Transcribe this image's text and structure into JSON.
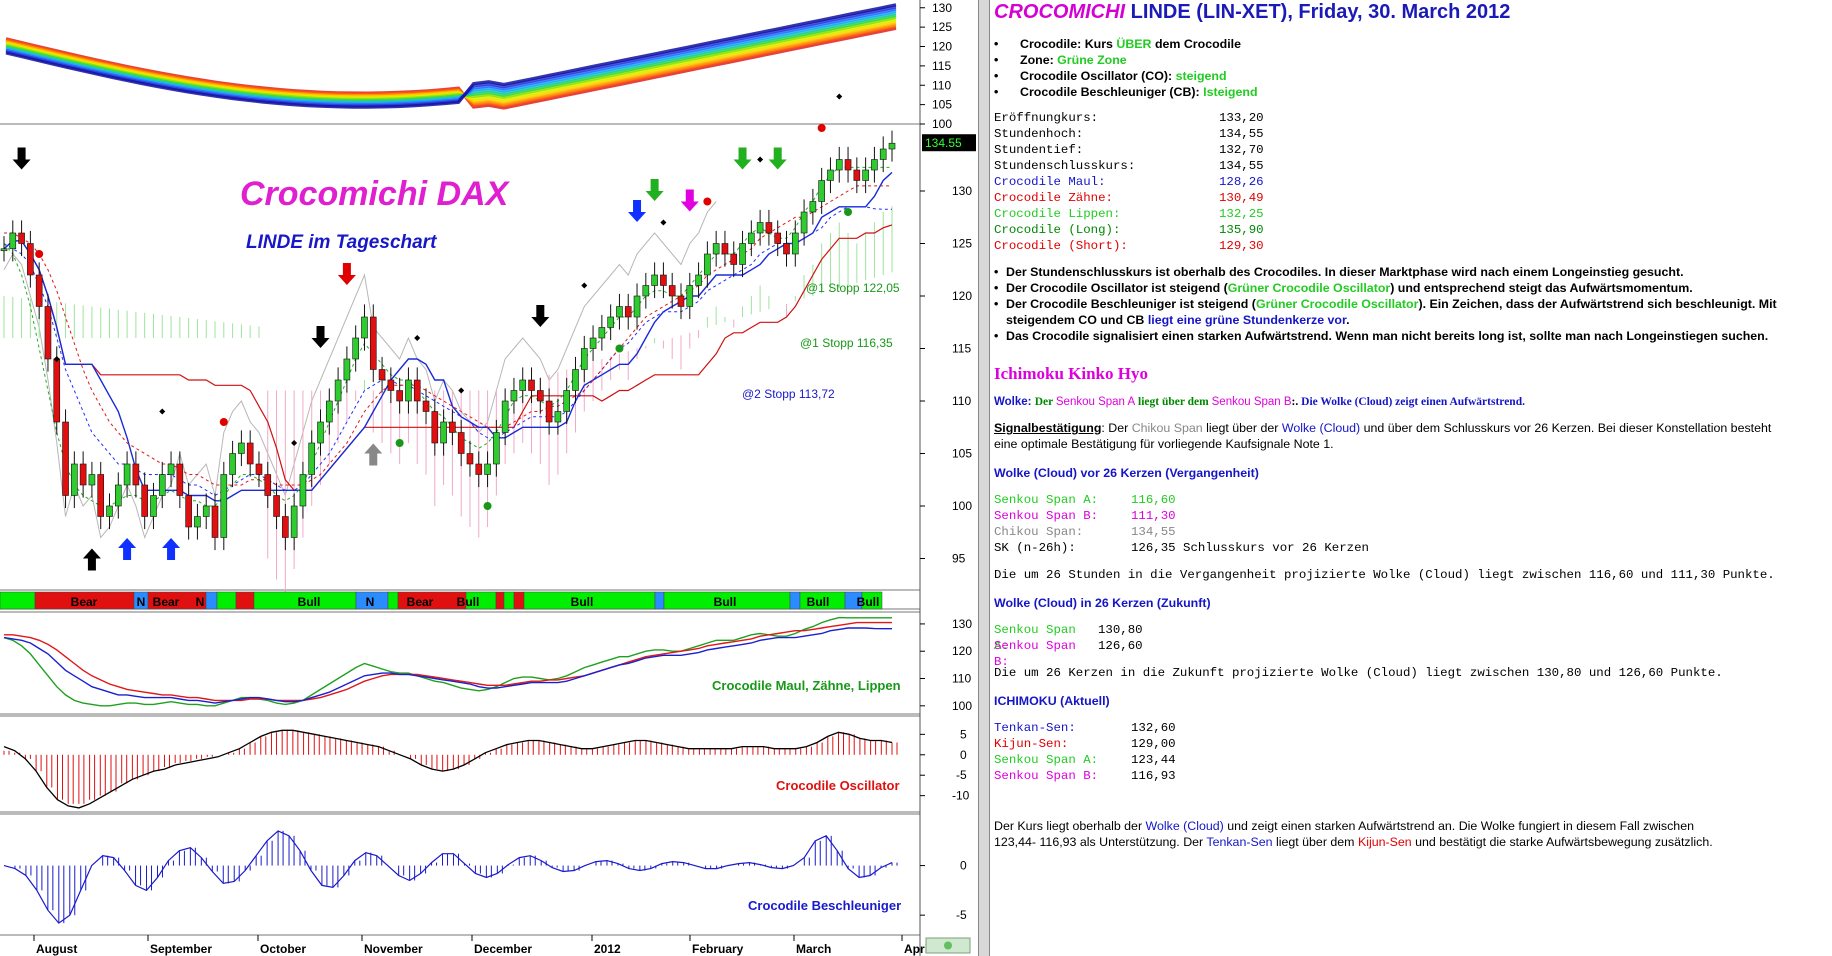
{
  "chart_data": [
    {
      "type": "area",
      "name": "ribbon",
      "ylim": [
        100,
        132
      ],
      "y_ticks": [
        "130",
        "125",
        "120",
        "115",
        "110",
        "105",
        "100"
      ]
    },
    {
      "type": "candlestick",
      "title": "Crocomichi DAX",
      "subtitle": "LINDE im Tageschart",
      "ylim": [
        92,
        136
      ],
      "y_ticks": [
        "130",
        "125",
        "120",
        "115",
        "110",
        "105",
        "100",
        "95"
      ],
      "last_price": "134.55",
      "annotations": [
        "@1 Stopp 122,05",
        "@1 Stopp 116,35",
        "@2 Stopp 113,72"
      ],
      "closes": [
        124.5,
        126,
        125,
        122,
        119,
        114,
        108,
        101,
        104,
        102,
        103,
        99,
        100,
        102,
        104,
        102,
        99,
        101,
        103,
        104,
        101,
        98,
        99,
        100,
        97,
        103,
        105,
        106,
        104,
        103,
        101,
        99,
        97,
        100,
        103,
        106,
        108,
        110,
        112,
        114,
        116,
        118,
        113,
        112,
        111,
        110,
        112,
        110,
        109,
        106,
        108,
        107,
        105,
        104,
        103,
        104,
        107,
        110,
        111,
        112,
        111,
        110,
        108,
        109,
        111,
        113,
        115,
        116,
        117,
        118,
        119,
        118,
        120,
        121,
        122,
        121,
        120,
        119,
        121,
        122,
        124,
        125,
        124,
        123,
        125,
        126,
        127,
        126,
        125,
        124,
        126,
        128,
        129,
        131,
        132,
        133,
        132,
        131,
        132,
        133,
        134,
        134.55
      ],
      "crocodile": {
        "maul": [
          125,
          124.5,
          124,
          123,
          121,
          119,
          116,
          113,
          111,
          109,
          107,
          106,
          105,
          104,
          104,
          103.5,
          103,
          103,
          103,
          103,
          102.5,
          102,
          102,
          101.5,
          101,
          101.5,
          102,
          102.5,
          103,
          103,
          102.5,
          102,
          101.5,
          101.5,
          102,
          103,
          104,
          105,
          106.5,
          108,
          109.5,
          111,
          111.5,
          112,
          112,
          111.5,
          111.5,
          111,
          110.5,
          110,
          109.5,
          109,
          108.5,
          108,
          107,
          106.5,
          106.5,
          107,
          107.5,
          108,
          108.5,
          108.5,
          108.5,
          108.5,
          109,
          110,
          111,
          112,
          113,
          114,
          115,
          115.5,
          116.5,
          117.5,
          118,
          118.5,
          118.5,
          118.5,
          119,
          119.5,
          120.5,
          121,
          121.5,
          122,
          122.5,
          123,
          124,
          124.5,
          125,
          125,
          125,
          125.5,
          126,
          126.5,
          127.5,
          128,
          128.5,
          128.5,
          128.5,
          128.3,
          128.26,
          128.26
        ],
        "zaehne": [
          126,
          126,
          125.5,
          125,
          124,
          122.5,
          120.5,
          118,
          115.5,
          113,
          111,
          109.5,
          108,
          107,
          106,
          105.5,
          105,
          104.5,
          104,
          104,
          103.5,
          103,
          103,
          102.5,
          102,
          102,
          102,
          102,
          102.5,
          102.5,
          102.5,
          102,
          102,
          102,
          102,
          102.5,
          103,
          104,
          105,
          106,
          107.5,
          109,
          110,
          111,
          111.5,
          111.5,
          111.5,
          111.5,
          111,
          110.5,
          110,
          109.5,
          109,
          108.5,
          108,
          107.5,
          107.5,
          107.5,
          108,
          108.5,
          109,
          109,
          109.5,
          109.5,
          110,
          110.5,
          111,
          112,
          113,
          114,
          115,
          116,
          117,
          118,
          118.5,
          119,
          119.5,
          120,
          120.5,
          121,
          122,
          122.5,
          123,
          123.5,
          124,
          124.5,
          125.5,
          126,
          126.5,
          127,
          127.5,
          127.5,
          128,
          128.5,
          129,
          129.5,
          130,
          130.49,
          130.49,
          130.49,
          130.49,
          130.49
        ],
        "lippen": [
          125,
          124,
          122,
          119,
          115,
          111,
          107,
          104,
          102,
          101,
          100.5,
          100,
          100,
          100.5,
          101,
          101,
          100.5,
          100.5,
          101,
          101.5,
          101,
          100.5,
          100.5,
          100,
          100,
          101,
          102,
          103,
          103,
          102.5,
          102,
          101,
          100.5,
          101,
          102,
          104,
          106,
          108,
          110,
          112,
          114,
          115.5,
          114.5,
          113.5,
          112.5,
          112,
          112,
          111,
          110,
          109,
          108.5,
          107.5,
          106.5,
          106,
          105.5,
          106,
          107,
          108.5,
          110,
          110.5,
          110.5,
          110,
          109.5,
          110,
          111,
          112.5,
          114,
          115,
          116,
          117,
          118,
          118,
          119,
          120,
          120.5,
          120.5,
          120,
          120,
          121,
          122,
          123,
          124,
          124,
          124,
          125,
          126,
          126.5,
          126,
          125.5,
          125.5,
          126.5,
          128,
          129,
          130.5,
          131.5,
          132.3,
          132.25,
          132.25,
          132.25,
          132.25,
          132.25,
          132.25
        ]
      }
    },
    {
      "type": "bar",
      "name": "phase-band",
      "labels": [
        "Bear",
        "N",
        "Bear",
        "N",
        "Bull",
        "N",
        "Bear",
        "Bull",
        "Bull",
        "Bull",
        "Bull",
        "Bull"
      ]
    },
    {
      "type": "line",
      "name": "crocodile-lines",
      "label": "Crocodile Maul, Zähne, Lippen",
      "ylim": [
        97,
        134
      ],
      "y_ticks": [
        "130",
        "120",
        "110",
        "100"
      ]
    },
    {
      "type": "bar",
      "name": "oscillator",
      "label": "Crocodile Oscillator",
      "ylim": [
        -14,
        9
      ],
      "y_ticks": [
        "5",
        "0",
        "-5",
        "-10"
      ],
      "values": [
        1,
        0.5,
        -1,
        -4,
        -8,
        -11,
        -12,
        -12,
        -11,
        -10,
        -9,
        -7,
        -6,
        -5,
        -4,
        -3,
        -2,
        -1.5,
        -1,
        -0.5,
        0,
        0.5,
        1.5,
        3,
        4.5,
        5.5,
        6,
        6,
        5.5,
        5,
        4.5,
        4,
        3.5,
        3,
        2.5,
        2,
        1,
        0,
        -1,
        -2.5,
        -3.5,
        -4,
        -3.5,
        -2.5,
        -1,
        0.5,
        1.5,
        2.5,
        3,
        3.5,
        3.5,
        3,
        2.5,
        2,
        1.5,
        1.5,
        2,
        2.5,
        3,
        3.5,
        3.5,
        3,
        2.5,
        2,
        1.5,
        1.5,
        1.5,
        1.5,
        1.5,
        2,
        2,
        2,
        1.5,
        1.5,
        1.5,
        2,
        3,
        4.5,
        5.5,
        5,
        4,
        3.5,
        3.5,
        3
      ],
      "signal": [
        2,
        1,
        -1,
        -4,
        -8,
        -11,
        -12.5,
        -13,
        -12,
        -10.5,
        -9,
        -7.5,
        -6,
        -5,
        -4,
        -3.5,
        -2.5,
        -2,
        -1.5,
        -1,
        -0.5,
        0.5,
        1.5,
        3,
        4.5,
        5.5,
        6,
        6,
        5.5,
        5,
        4.5,
        4,
        3.5,
        3,
        2.5,
        2,
        1,
        0,
        -1,
        -2.5,
        -3.5,
        -4,
        -3.5,
        -2.5,
        -1,
        0.5,
        1.5,
        2.5,
        3,
        3.5,
        3.5,
        3,
        2.5,
        2,
        1.5,
        1.5,
        2,
        2.5,
        3,
        3.5,
        3.5,
        3,
        2.5,
        2,
        1.5,
        1.5,
        1.5,
        1.5,
        1.5,
        2,
        2,
        2,
        1.5,
        1.5,
        1.5,
        2,
        3,
        4.5,
        5.5,
        5,
        4,
        3.5,
        3.5,
        3
      ]
    },
    {
      "type": "bar",
      "name": "beschleuniger",
      "label": "Crocodile Beschleuniger",
      "ylim": [
        -7,
        5
      ],
      "y_ticks": [
        "0",
        "-5"
      ],
      "values": [
        0,
        -0.3,
        -1,
        -2.5,
        -4.5,
        -5.8,
        -5,
        -2.5,
        0,
        1,
        0.8,
        -0.5,
        -2,
        -2.5,
        -1.2,
        0.5,
        1.5,
        1.8,
        0.8,
        -0.6,
        -1.8,
        -1.6,
        -0.5,
        1,
        2.5,
        3.5,
        3,
        1.5,
        -0.5,
        -2,
        -2.2,
        -1,
        0.5,
        1.3,
        1,
        0,
        -1,
        -1.5,
        -0.8,
        0.3,
        1.2,
        1.2,
        0.2,
        -0.8,
        -1.2,
        -0.8,
        0.1,
        0.8,
        1,
        0.5,
        -0.2,
        -0.6,
        -0.5,
        0,
        0.4,
        0.5,
        0.2,
        -0.3,
        -0.5,
        -0.3,
        0.2,
        0.4,
        0.3,
        0,
        -0.3,
        -0.3,
        0,
        0.2,
        0.3,
        0.1,
        -0.2,
        -0.3,
        0,
        0.8,
        2.5,
        3,
        1.5,
        -0.3,
        -1.2,
        -1,
        -0.2,
        0.3
      ]
    }
  ],
  "x_axis": {
    "month_labels": [
      "August",
      "September",
      "October",
      "November",
      "December",
      "2012",
      "February",
      "March",
      "Apri"
    ]
  },
  "report": {
    "title_brand": "CROCOMICHI",
    "title_rest": " LINDE (LIN-XET), Friday, 30. March 2012",
    "bullets": {
      "b1_label": "Crocodile:  Kurs ",
      "b1_value": "ÜBER",
      "b1_tail": " dem Crocodile",
      "b2_label": "Zone:  ",
      "b2_value": "Grüne Zone",
      "b3_label": "Crocodile Oscillator (CO):  ",
      "b3_value": "steigend",
      "b4_label": "Crocodile Beschleuniger (CB):  ",
      "b4_value": "Isteigend"
    },
    "prices": {
      "open_label": "Eröffnungkurs:",
      "open": "133,20",
      "high_label": "Stundenhoch:",
      "high": "134,55",
      "low_label": "Stundentief:",
      "low": "132,70",
      "close_label": "Stundenschlusskurs:",
      "close": "134,55",
      "maul_label": "Crocodile Maul:",
      "maul": "128,26",
      "zaehne_label": "Crocodile Zähne:",
      "zaehne": "130,49",
      "lippen_label": "Crocodile Lippen:",
      "lippen": "132,25",
      "long_label": "Crocodile  (Long):",
      "long": "135,90",
      "short_label": "Crocodile  (Short):",
      "short": "129,30"
    },
    "summary": {
      "l1": "Der Stundenschlusskurs ist oberhalb des Crocodiles. In dieser Marktphase wird nach einem Longeinstieg gesucht.",
      "l2a": "Der Crocodile Oscillator ist steigend (",
      "l2b": "Grüner Crocodile Oscillator",
      "l2c": ") und entsprechend steigt das Aufwärtsmomentum.",
      "l3a": "Der Crocodile Beschleuniger ist steigend (",
      "l3b": "Grüner Crocodile Oscillator",
      "l3c": "). Ein Zeichen, dass der Aufwärtstrend sich beschleunigt. Mit",
      "l3d": "steigendem CO und CB ",
      "l3e": "liegt eine grüne Stundenkerze vor",
      "l3f": ".",
      "l4": "Das Crocodile signalisiert einen starken Aufwärtstrend. Wenn man nicht bereits long ist, sollte man nach Longeinstiegen suchen."
    },
    "ichimoku_head": "Ichimoku Kinko Hyo",
    "wolke": {
      "a": "Wolke: ",
      "b": "Der ",
      "c": "Senkou Span A",
      "d": " liegt über dem ",
      "e": "Senkou Span B",
      "f": ":. ",
      "g": "Die Wolke (Cloud) zeigt einen Aufwärtstrend."
    },
    "signal": {
      "a": "Signalbestätigung",
      "b": ": Der ",
      "c": "Chikou Span",
      "d": " liegt über der ",
      "e": "Wolke (Cloud)",
      "f": " und über dem Schlusskurs vor 26 Kerzen. Bei dieser Konstellation besteht",
      "g": "eine optimale Bestätigung für vorliegende Kaufsignale Note 1."
    },
    "past_head": "Wolke (Cloud) vor 26 Kerzen (Vergangenheit)",
    "past": {
      "a_label": "Senkou Span A:",
      "a": "116,60",
      "b_label": "Senkou Span B:",
      "b": "111,30",
      "c_label": "Chikou Span:",
      "c": "134,55",
      "sk_label": "SK (n-26h):",
      "sk": "126,35 Schlusskurs vor 26 Kerzen"
    },
    "past_text": "Die um 26 Stunden in die Vergangenheit projizierte Wolke (Cloud) liegt zwischen 116,60 und 111,30 Punkte.",
    "future_head": "Wolke (Cloud) in 26 Kerzen (Zukunft)",
    "future": {
      "a_label": "Senkou Span A:",
      "a": "130,80",
      "b_label": "Senkou Span B:",
      "b": "126,60"
    },
    "future_text": "Die um 26 Kerzen in die Zukunft projizierte Wolke (Cloud) liegt zwischen 130,80 und 126,60 Punkte.",
    "current_head": "ICHIMOKU (Aktuell)",
    "current": {
      "tenkan_label": "Tenkan-Sen:",
      "tenkan": "132,60",
      "kijun_label": "Kijun-Sen:",
      "kijun": "129,00",
      "a_label": "Senkou Span A:",
      "a": "123,44",
      "b_label": "Senkou Span B:",
      "b": "116,93"
    },
    "final": {
      "a": "Der Kurs liegt oberhalb der ",
      "b": "Wolke (Cloud)",
      "c": " und zeigt einen starken Aufwärtstrend an. Die Wolke fungiert in diesem Fall zwischen",
      "d": "123,44- 116,93 als Unterstützung. Der ",
      "e": "Tenkan-Sen",
      "f": " liegt über dem ",
      "g": "Kijun-Sen",
      "h": " und bestätigt die starke Aufwärtsbewegung zusätzlich."
    },
    "colors": {
      "brand": "#d400d4",
      "title": "#1a1ab8",
      "green": "#22cc22",
      "blue": "#1515c8",
      "red": "#e00000",
      "magenta": "#dd00dd",
      "teal": "#1e8c8c"
    }
  }
}
